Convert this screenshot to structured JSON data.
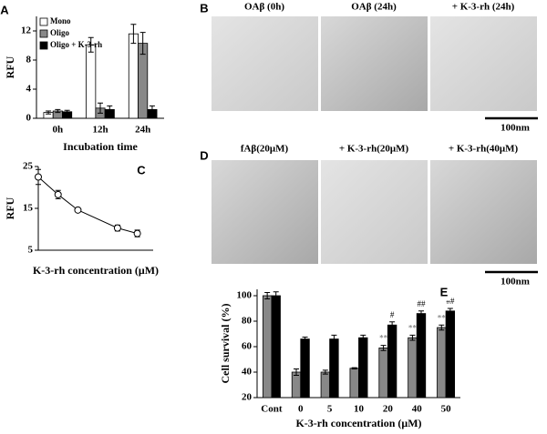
{
  "chart_data": [
    {
      "type": "bar",
      "panel": "A",
      "ylabel": "RFU",
      "xlabel": "Incubation time",
      "categories": [
        "0h",
        "12h",
        "24h"
      ],
      "series": [
        {
          "name": "Mono",
          "color": "#ffffff",
          "values": [
            0.8,
            10.1,
            11.6
          ],
          "errors": [
            0.2,
            1.0,
            1.3
          ]
        },
        {
          "name": "Oligo",
          "color": "#888888",
          "values": [
            1.0,
            1.4,
            10.3
          ],
          "errors": [
            0.2,
            0.7,
            1.5
          ]
        },
        {
          "name": "Oligo + K-3-rh",
          "color": "#000000",
          "values": [
            0.9,
            1.2,
            1.2
          ],
          "errors": [
            0.2,
            0.5,
            0.5
          ]
        }
      ],
      "ylim": [
        0,
        14
      ],
      "yticks": [
        0,
        4,
        8,
        12
      ],
      "legend": "top-left"
    },
    {
      "type": "line",
      "panel": "C",
      "ylabel": "RFU",
      "xlabel": "K-3-rh concentration (μM)",
      "x": [
        0,
        10,
        20,
        40,
        50
      ],
      "series": [
        {
          "color": "#000000",
          "values": [
            22.5,
            18.3,
            14.6,
            10.3,
            9.0
          ],
          "errors": [
            1.8,
            1.0,
            0.3,
            0.7,
            0.8
          ]
        }
      ],
      "xlim": [
        0,
        58
      ],
      "ylim": [
        5,
        25
      ],
      "yticks": [
        5,
        15,
        25
      ]
    },
    {
      "type": "bar",
      "panel": "E",
      "ylabel": "Cell survival (%)",
      "xlabel": "K-3-rh concentration (μM)",
      "categories": [
        "Cont",
        "0",
        "5",
        "10",
        "20",
        "40",
        "50"
      ],
      "series": [
        {
          "color": "#888888",
          "values": [
            100,
            40,
            40,
            43,
            59,
            67,
            75
          ],
          "errors": [
            2.5,
            2.5,
            1.5,
            0.5,
            2,
            2,
            2
          ],
          "annotations": [
            null,
            null,
            null,
            null,
            "**",
            "**",
            "**"
          ]
        },
        {
          "color": "#000000",
          "values": [
            100,
            66,
            66,
            67,
            77,
            86,
            88
          ],
          "errors": [
            3,
            1.5,
            3,
            2,
            2.5,
            2,
            2
          ],
          "annotations": [
            null,
            null,
            null,
            null,
            "#",
            "##",
            "##"
          ]
        }
      ],
      "ylim": [
        20,
        105
      ],
      "yticks": [
        20,
        40,
        60,
        80,
        100
      ]
    }
  ],
  "images": [
    {
      "panel": "B",
      "captions": [
        "OAβ (0h)",
        "OAβ (24h)",
        "+ K-3-rh (24h)"
      ],
      "scale": "100nm"
    },
    {
      "panel": "D",
      "captions": [
        "fAβ(20μM)",
        "+ K-3-rh(20μM)",
        "+ K-3-rh(40μM)"
      ],
      "scale": "100nm"
    }
  ]
}
